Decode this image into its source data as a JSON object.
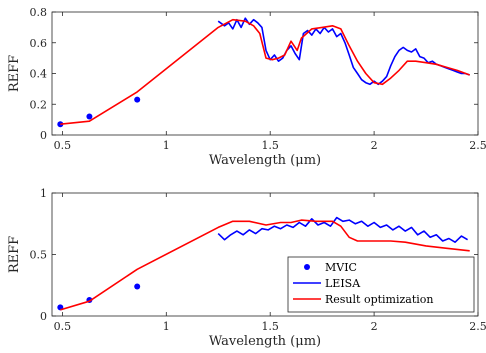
{
  "chart_data": [
    {
      "type": "line",
      "xlabel": "Wavelength (μm)",
      "ylabel": "REFF",
      "xlim": [
        0.45,
        2.5
      ],
      "ylim": [
        0,
        0.8
      ],
      "xticks": [
        0.5,
        1,
        1.5,
        2,
        2.5
      ],
      "xtick_labels": [
        "0.5",
        "1",
        "1.5",
        "2",
        "2.5"
      ],
      "yticks": [
        0,
        0.2,
        0.4,
        0.6,
        0.8
      ],
      "ytick_labels": [
        "0",
        "0.2",
        "0.4",
        "0.6",
        "0.8"
      ],
      "grid": false,
      "colors": {
        "MVIC": "#0000ff",
        "LEISA": "#0000ff",
        "Result optimization": "#ff0000"
      },
      "series": [
        {
          "name": "MVIC",
          "kind": "scatter",
          "x": [
            0.49,
            0.63,
            0.86
          ],
          "y": [
            0.07,
            0.12,
            0.23
          ]
        },
        {
          "name": "LEISA",
          "kind": "line",
          "x": [
            1.25,
            1.28,
            1.3,
            1.32,
            1.34,
            1.36,
            1.38,
            1.4,
            1.42,
            1.44,
            1.46,
            1.48,
            1.5,
            1.52,
            1.54,
            1.56,
            1.58,
            1.6,
            1.62,
            1.64,
            1.66,
            1.68,
            1.7,
            1.72,
            1.74,
            1.76,
            1.78,
            1.8,
            1.82,
            1.84,
            1.86,
            1.88,
            1.9,
            1.92,
            1.94,
            1.96,
            1.98,
            2.0,
            2.02,
            2.04,
            2.06,
            2.08,
            2.1,
            2.12,
            2.14,
            2.16,
            2.18,
            2.2,
            2.22,
            2.24,
            2.26,
            2.28,
            2.3,
            2.32,
            2.34,
            2.36,
            2.38,
            2.4,
            2.42,
            2.44,
            2.46
          ],
          "y": [
            0.74,
            0.71,
            0.73,
            0.69,
            0.75,
            0.7,
            0.76,
            0.72,
            0.75,
            0.73,
            0.7,
            0.55,
            0.49,
            0.52,
            0.48,
            0.5,
            0.55,
            0.58,
            0.53,
            0.49,
            0.66,
            0.68,
            0.65,
            0.69,
            0.66,
            0.7,
            0.67,
            0.69,
            0.64,
            0.66,
            0.6,
            0.52,
            0.44,
            0.4,
            0.36,
            0.34,
            0.33,
            0.35,
            0.33,
            0.35,
            0.38,
            0.45,
            0.51,
            0.55,
            0.57,
            0.55,
            0.54,
            0.56,
            0.51,
            0.5,
            0.47,
            0.48,
            0.46,
            0.45,
            0.44,
            0.43,
            0.42,
            0.41,
            0.4,
            0.4,
            0.39
          ]
        },
        {
          "name": "Result optimization",
          "kind": "line",
          "x": [
            0.49,
            0.63,
            0.86,
            1.25,
            1.32,
            1.38,
            1.42,
            1.45,
            1.48,
            1.51,
            1.54,
            1.57,
            1.6,
            1.63,
            1.65,
            1.7,
            1.75,
            1.8,
            1.84,
            1.88,
            1.92,
            1.96,
            2.0,
            2.04,
            2.08,
            2.12,
            2.16,
            2.2,
            2.25,
            2.3,
            2.35,
            2.4,
            2.46
          ],
          "y": [
            0.07,
            0.09,
            0.28,
            0.7,
            0.75,
            0.74,
            0.71,
            0.66,
            0.5,
            0.49,
            0.5,
            0.52,
            0.61,
            0.55,
            0.63,
            0.69,
            0.7,
            0.71,
            0.69,
            0.58,
            0.48,
            0.4,
            0.34,
            0.33,
            0.37,
            0.42,
            0.48,
            0.48,
            0.47,
            0.46,
            0.44,
            0.42,
            0.39
          ]
        }
      ]
    },
    {
      "type": "line",
      "xlabel": "Wavelength (μm)",
      "ylabel": "REFF",
      "xlim": [
        0.45,
        2.5
      ],
      "ylim": [
        0,
        1
      ],
      "xticks": [
        0.5,
        1,
        1.5,
        2,
        2.5
      ],
      "xtick_labels": [
        "0.5",
        "1",
        "1.5",
        "2",
        "2.5"
      ],
      "yticks": [
        0,
        0.5,
        1
      ],
      "ytick_labels": [
        "0",
        "0.5",
        "1"
      ],
      "grid": false,
      "legend": {
        "placement": "bottom-right",
        "entries": [
          "MVIC",
          "LEISA",
          "Result optimization"
        ]
      },
      "colors": {
        "MVIC": "#0000ff",
        "LEISA": "#0000ff",
        "Result optimization": "#ff0000"
      },
      "series": [
        {
          "name": "MVIC",
          "kind": "scatter",
          "x": [
            0.49,
            0.63,
            0.86
          ],
          "y": [
            0.07,
            0.13,
            0.24
          ]
        },
        {
          "name": "LEISA",
          "kind": "line",
          "x": [
            1.25,
            1.28,
            1.31,
            1.34,
            1.37,
            1.4,
            1.43,
            1.46,
            1.49,
            1.52,
            1.55,
            1.58,
            1.61,
            1.64,
            1.67,
            1.7,
            1.73,
            1.76,
            1.79,
            1.82,
            1.85,
            1.88,
            1.91,
            1.94,
            1.97,
            2.0,
            2.03,
            2.06,
            2.09,
            2.12,
            2.15,
            2.18,
            2.21,
            2.24,
            2.27,
            2.3,
            2.33,
            2.36,
            2.39,
            2.42,
            2.45
          ],
          "y": [
            0.67,
            0.62,
            0.66,
            0.69,
            0.66,
            0.7,
            0.67,
            0.71,
            0.7,
            0.73,
            0.71,
            0.74,
            0.72,
            0.76,
            0.73,
            0.79,
            0.74,
            0.76,
            0.73,
            0.8,
            0.77,
            0.78,
            0.75,
            0.77,
            0.73,
            0.76,
            0.72,
            0.74,
            0.7,
            0.73,
            0.69,
            0.72,
            0.66,
            0.69,
            0.64,
            0.66,
            0.61,
            0.63,
            0.6,
            0.65,
            0.62
          ]
        },
        {
          "name": "Result optimization",
          "kind": "line",
          "x": [
            0.49,
            0.63,
            0.86,
            1.25,
            1.32,
            1.4,
            1.48,
            1.55,
            1.6,
            1.65,
            1.72,
            1.8,
            1.84,
            1.88,
            1.92,
            2.0,
            2.08,
            2.15,
            2.25,
            2.35,
            2.46
          ],
          "y": [
            0.05,
            0.12,
            0.38,
            0.72,
            0.77,
            0.77,
            0.74,
            0.76,
            0.76,
            0.78,
            0.77,
            0.77,
            0.73,
            0.64,
            0.61,
            0.61,
            0.61,
            0.6,
            0.57,
            0.55,
            0.53
          ]
        }
      ]
    }
  ]
}
